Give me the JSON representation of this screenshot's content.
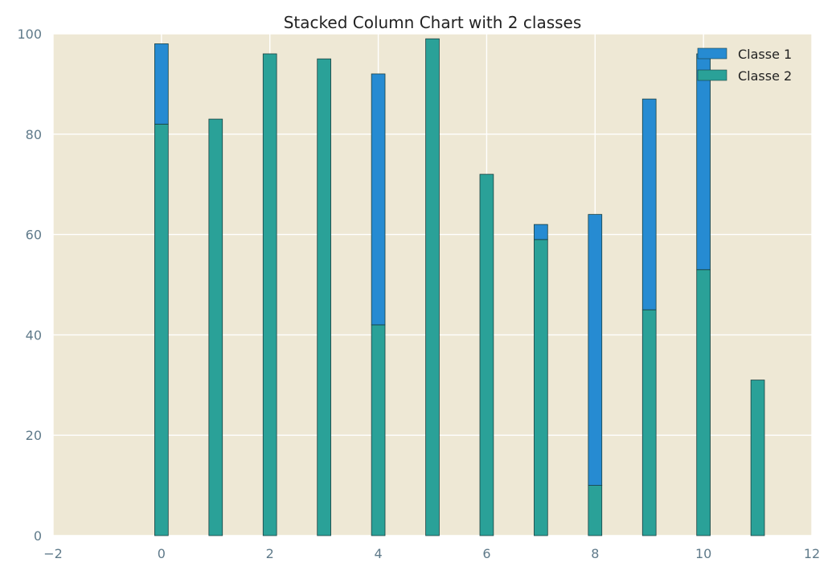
{
  "chart_data": {
    "type": "bar",
    "stacked": true,
    "title": "Stacked Column Chart with 2 classes",
    "xlabel": "",
    "ylabel": "",
    "xlim": [
      -2,
      12
    ],
    "ylim": [
      0,
      100
    ],
    "x_ticks": [
      "−2",
      "0",
      "2",
      "4",
      "6",
      "8",
      "10",
      "12"
    ],
    "y_ticks": [
      "0",
      "20",
      "40",
      "60",
      "80",
      "100"
    ],
    "x": [
      0,
      1,
      2,
      3,
      4,
      5,
      6,
      7,
      8,
      9,
      10,
      11
    ],
    "series": [
      {
        "name": "Classe 2",
        "color": "#2aa198",
        "values": [
          82,
          83,
          96,
          95,
          42,
          99,
          72,
          59,
          10,
          45,
          53,
          31
        ]
      },
      {
        "name": "Classe 1",
        "color": "#268bd2",
        "values": [
          16,
          0,
          0,
          0,
          50,
          0,
          0,
          3,
          54,
          42,
          43,
          0
        ]
      }
    ],
    "legend": {
      "position": "top-right",
      "entries": [
        {
          "label": "Classe 1",
          "color": "#268bd2"
        },
        {
          "label": "Classe 2",
          "color": "#2aa198"
        }
      ]
    },
    "grid": true,
    "background": "#eee8d5",
    "grid_color": "#ffffff"
  }
}
